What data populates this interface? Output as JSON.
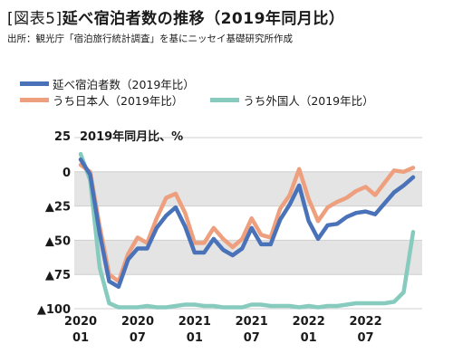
{
  "header": {
    "figure_label": "[図表5]",
    "title": "延べ宿泊者数の推移（2019年同月比）",
    "source": "出所：観光庁「宿泊旅行統計調査」を基にニッセイ基礎研究所作成"
  },
  "chart_data": {
    "type": "line",
    "ylabel": "2019年同月比、%",
    "ylim": [
      -100,
      25
    ],
    "yticks": [
      {
        "value": 25,
        "label": "25"
      },
      {
        "value": 0,
        "label": "0"
      },
      {
        "value": -25,
        "label": "▲25"
      },
      {
        "value": -50,
        "label": "▲50"
      },
      {
        "value": -75,
        "label": "▲75"
      },
      {
        "value": -100,
        "label": "▲100"
      }
    ],
    "xticks": [
      {
        "index": 0,
        "label": [
          "2020",
          "01"
        ]
      },
      {
        "index": 6,
        "label": [
          "2020",
          "07"
        ]
      },
      {
        "index": 12,
        "label": [
          "2021",
          "01"
        ]
      },
      {
        "index": 18,
        "label": [
          "2021",
          "07"
        ]
      },
      {
        "index": 24,
        "label": [
          "2022",
          "01"
        ]
      },
      {
        "index": 30,
        "label": [
          "2022",
          "07"
        ]
      }
    ],
    "x": [
      "2020-01",
      "2020-02",
      "2020-03",
      "2020-04",
      "2020-05",
      "2020-06",
      "2020-07",
      "2020-08",
      "2020-09",
      "2020-10",
      "2020-11",
      "2020-12",
      "2021-01",
      "2021-02",
      "2021-03",
      "2021-04",
      "2021-05",
      "2021-06",
      "2021-07",
      "2021-08",
      "2021-09",
      "2021-10",
      "2021-11",
      "2021-12",
      "2022-01",
      "2022-02",
      "2022-03",
      "2022-04",
      "2022-05",
      "2022-06",
      "2022-07",
      "2022-08",
      "2022-09",
      "2022-10",
      "2022-11",
      "2022-12"
    ],
    "series": [
      {
        "name": "延べ宿泊者数（2019年比）",
        "color": "#4a72b8",
        "values": [
          9,
          -2,
          -45,
          -80,
          -84,
          -64,
          -56,
          -56,
          -41,
          -32,
          -26,
          -40,
          -59,
          -59,
          -49,
          -57,
          -61,
          -56,
          -41,
          -53,
          -53,
          -35,
          -24,
          -10,
          -36,
          -49,
          -39,
          -38,
          -33,
          -30,
          -29,
          -31,
          -23,
          -15,
          -10,
          -4
        ]
      },
      {
        "name": "うち日本人（2019年比）",
        "color": "#ee9f7d",
        "values": [
          5,
          0,
          -40,
          -75,
          -80,
          -60,
          -48,
          -52,
          -34,
          -19,
          -16,
          -30,
          -52,
          -52,
          -41,
          -49,
          -55,
          -49,
          -34,
          -46,
          -48,
          -27,
          -17,
          2,
          -20,
          -36,
          -26,
          -22,
          -19,
          -14,
          -11,
          -17,
          -8,
          1,
          0,
          3
        ]
      },
      {
        "name": "うち外国人（2019年比）",
        "color": "#86cbbd",
        "values": [
          13,
          -6,
          -70,
          -96,
          -99,
          -99,
          -99,
          -98,
          -99,
          -99,
          -98,
          -97,
          -97,
          -98,
          -98,
          -99,
          -99,
          -99,
          -97,
          -97,
          -98,
          -98,
          -98,
          -99,
          -98,
          -99,
          -98,
          -98,
          -97,
          -96,
          -96,
          -96,
          -96,
          -95,
          -88,
          -44
        ]
      }
    ]
  }
}
